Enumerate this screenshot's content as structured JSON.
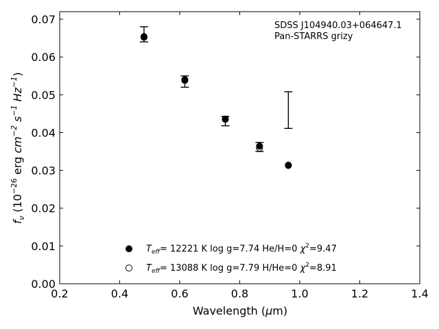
{
  "chart_data": {
    "type": "scatter",
    "xlabel_prefix": "Wavelength (",
    "xlabel_mu": "μ",
    "xlabel_suffix": "m)",
    "ylabel_f": "f",
    "ylabel_nu": "ν",
    "ylabel_part1": " (10",
    "ylabel_exp1": "−26",
    "ylabel_part2": " erg ",
    "ylabel_cm": "cm",
    "ylabel_exp2": "−2",
    "ylabel_s": " s",
    "ylabel_exp3": "−1",
    "ylabel_hz": " Hz",
    "ylabel_exp4": "−1",
    "ylabel_close": ")",
    "xlim": [
      0.2,
      1.4
    ],
    "ylim": [
      0.0,
      0.072
    ],
    "xticks": [
      0.2,
      0.4,
      0.6,
      0.8,
      1.0,
      1.2,
      1.4
    ],
    "xtick_labels": [
      "0.2",
      "0.4",
      "0.6",
      "0.8",
      "1.0",
      "1.2",
      "1.4"
    ],
    "yticks": [
      0.0,
      0.01,
      0.02,
      0.03,
      0.04,
      0.05,
      0.06,
      0.07
    ],
    "ytick_labels": [
      "0.00",
      "0.01",
      "0.02",
      "0.03",
      "0.04",
      "0.05",
      "0.06",
      "0.07"
    ],
    "annotation_line1": "SDSS J104940.03+064647.1",
    "annotation_line2": "Pan-STARRS grizy",
    "observed": {
      "x": [
        0.481,
        0.617,
        0.752,
        0.866,
        0.962
      ],
      "y": [
        0.066,
        0.0535,
        0.0432,
        0.0362,
        0.046
      ],
      "yerr_low": [
        0.064,
        0.052,
        0.0418,
        0.035,
        0.0411
      ],
      "yerr_high": [
        0.068,
        0.055,
        0.0443,
        0.0374,
        0.0508
      ]
    },
    "series": [
      {
        "marker": "filled-circle",
        "x": [
          0.481,
          0.617,
          0.752,
          0.866,
          0.962
        ],
        "y": [
          0.0654,
          0.054,
          0.0436,
          0.0364,
          0.0314
        ],
        "legend": {
          "t": "T",
          "t_sub": "eff",
          "rest": "= 12221 K  log g=7.74  He/H=0  ",
          "chi": "χ",
          "chi_exp": "2",
          "chi_val": "=9.47"
        }
      },
      {
        "marker": "open-circle",
        "x": [
          0.481,
          0.617,
          0.752,
          0.866,
          0.962
        ],
        "y": [
          0.0652,
          0.0538,
          0.0435,
          0.0359,
          0.0313
        ],
        "legend": {
          "t": "T",
          "t_sub": "eff",
          "rest": "= 13088 K  log g=7.79  H/He=0  ",
          "chi": "χ",
          "chi_exp": "2",
          "chi_val": "=8.91"
        }
      }
    ]
  }
}
